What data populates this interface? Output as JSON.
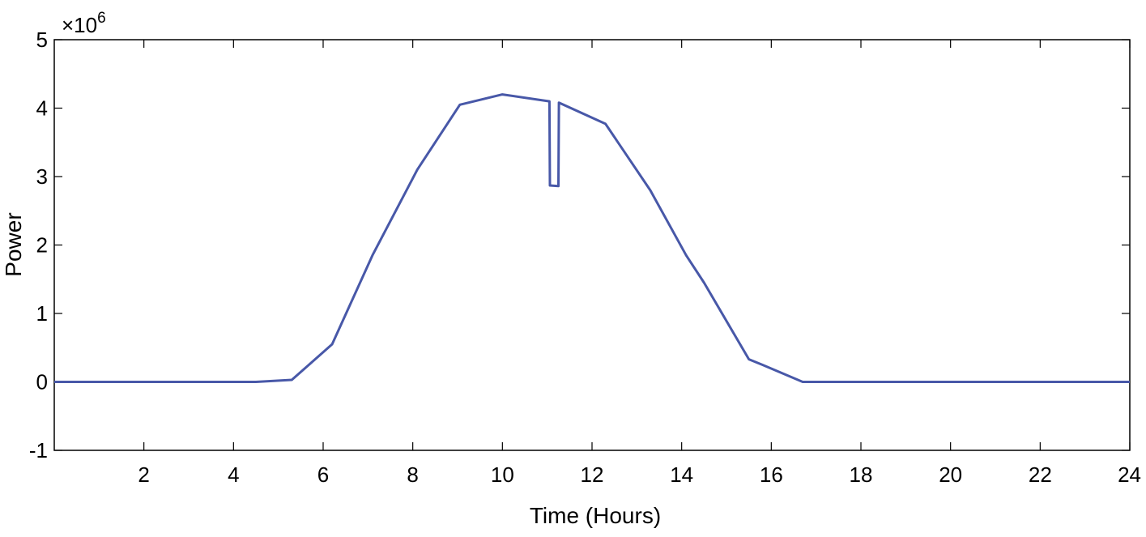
{
  "chart_data": {
    "type": "line",
    "title": "",
    "xlabel": "Time (Hours)",
    "ylabel": "Power",
    "y_multiplier_label": "×10",
    "y_multiplier_exponent": "6",
    "xlim": [
      0,
      24
    ],
    "ylim": [
      -1,
      5
    ],
    "xticks": [
      2,
      4,
      6,
      8,
      10,
      12,
      14,
      16,
      18,
      20,
      22,
      24
    ],
    "yticks": [
      -1,
      0,
      1,
      2,
      3,
      4,
      5
    ],
    "grid": false,
    "line_color": "#4858a8",
    "series": [
      {
        "x": [
          0,
          4.5,
          5.3,
          6.2,
          7.1,
          8.1,
          9.05,
          10.0,
          11.05,
          11.06,
          11.25,
          11.26,
          12.3,
          13.3,
          14.1,
          14.5,
          15.5,
          15.8,
          16.7,
          24
        ],
        "y": [
          0,
          0,
          0.03,
          0.55,
          1.85,
          3.1,
          4.05,
          4.2,
          4.1,
          2.87,
          2.86,
          4.08,
          3.77,
          2.8,
          1.85,
          1.45,
          0.33,
          0.25,
          0.0,
          0.0
        ]
      }
    ]
  }
}
